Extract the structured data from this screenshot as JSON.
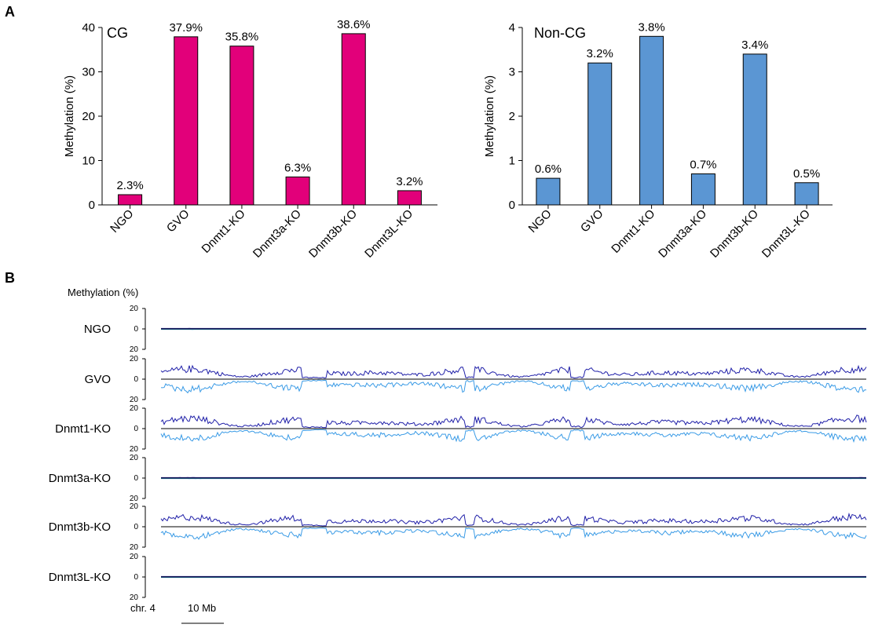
{
  "panel_a": {
    "letter": "A"
  },
  "panel_b": {
    "letter": "B",
    "ylabel": "Methylation (%)",
    "chromosome": "chr. 4",
    "scale_bar": "10 Mb"
  },
  "chart_data": [
    {
      "type": "bar",
      "title": "CG",
      "ylabel": "Methylation (%)",
      "ylim": [
        0,
        40
      ],
      "yticks": [
        0,
        10,
        20,
        30,
        40
      ],
      "categories": [
        "NGO",
        "GVO",
        "Dnmt1-KO",
        "Dnmt3a-KO",
        "Dnmt3b-KO",
        "Dnmt3L-KO"
      ],
      "values": [
        2.3,
        37.9,
        35.8,
        6.3,
        38.6,
        3.2
      ],
      "data_labels": [
        "2.3%",
        "37.9%",
        "35.8%",
        "6.3%",
        "38.6%",
        "3.2%"
      ],
      "color": "#e2007a"
    },
    {
      "type": "bar",
      "title": "Non-CG",
      "ylabel": "Methylation (%)",
      "ylim": [
        0,
        4
      ],
      "yticks": [
        0,
        1,
        2,
        3,
        4
      ],
      "categories": [
        "NGO",
        "GVO",
        "Dnmt1-KO",
        "Dnmt3a-KO",
        "Dnmt3b-KO",
        "Dnmt3L-KO"
      ],
      "values": [
        0.6,
        3.2,
        3.8,
        0.7,
        3.4,
        0.5
      ],
      "data_labels": [
        "0.6%",
        "3.2%",
        "3.8%",
        "0.7%",
        "3.4%",
        "0.5%"
      ],
      "color": "#5b96d3"
    },
    {
      "type": "line",
      "xlabel": "chr. 4",
      "ylabel": "Methylation (%)",
      "ylim": [
        -20,
        20
      ],
      "yticks": [
        20,
        0,
        20
      ],
      "tracks": [
        "NGO",
        "GVO",
        "Dnmt1-KO",
        "Dnmt3a-KO",
        "Dnmt3b-KO",
        "Dnmt3L-KO"
      ],
      "track_level": [
        0.04,
        1,
        1,
        0.04,
        0.95,
        0.02
      ],
      "colors": {
        "plus_strand": "#1f1fa8",
        "minus_strand": "#3a9be6"
      }
    }
  ]
}
